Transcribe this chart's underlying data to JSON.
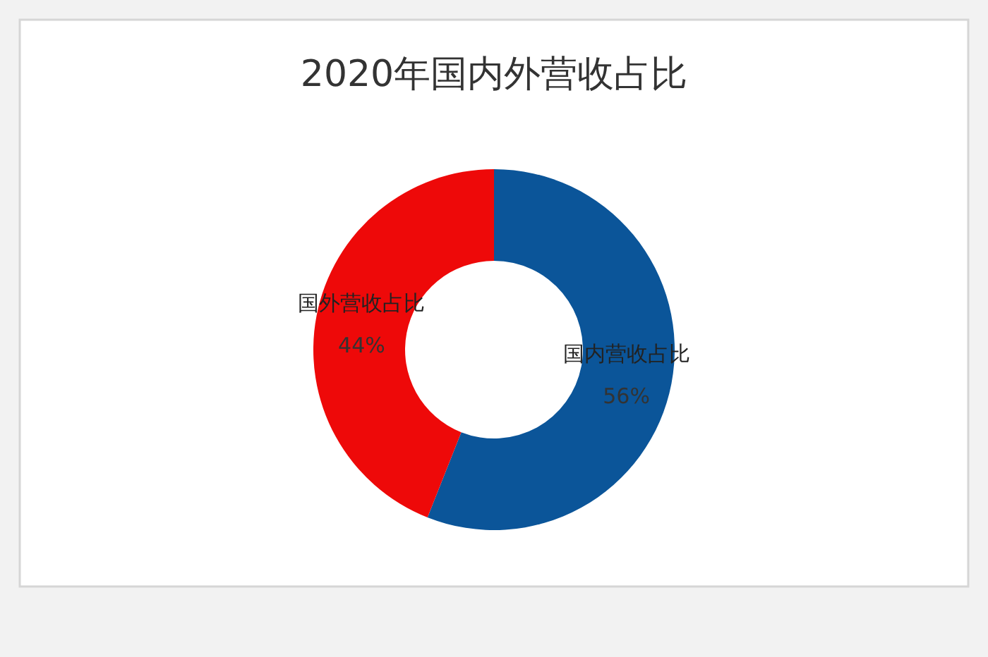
{
  "chart_data": {
    "type": "donut",
    "title": "2020年国内外营收占比",
    "categories": [
      "国内营收占比",
      "国外营收占比"
    ],
    "values": [
      56,
      44
    ],
    "colors": [
      "#0b5599",
      "#ee0909"
    ],
    "value_labels": [
      "56%",
      "44%"
    ]
  }
}
